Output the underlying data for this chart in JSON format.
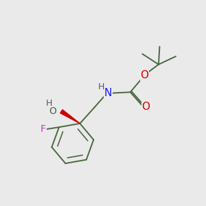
{
  "bg_color": "#eaeaea",
  "bond_color": "#4a6741",
  "bond_width": 1.4,
  "atom_colors": {
    "N": "#1a1aff",
    "O": "#dd0000",
    "F": "#cc33cc",
    "wedge": "#cc0000",
    "gray": "#555555"
  },
  "font_size": 9.5,
  "fig_size": [
    3.0,
    3.0
  ],
  "dpi": 100,
  "xlim": [
    0,
    10
  ],
  "ylim": [
    0,
    10
  ]
}
